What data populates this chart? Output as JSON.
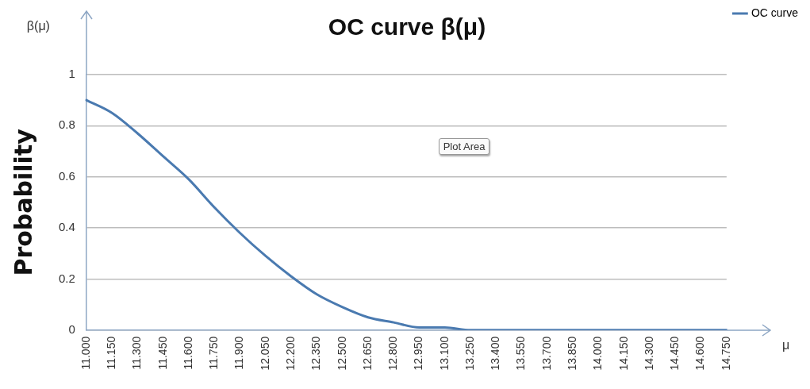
{
  "chart_data": {
    "type": "line",
    "title": "OC curve β(μ)",
    "xlabel": "μ",
    "ylabel": "Probability",
    "annotations": [
      "β(μ)",
      "Plot Area"
    ],
    "categories": [
      "11.000",
      "11.150",
      "11.300",
      "11.450",
      "11.600",
      "11.750",
      "11.900",
      "12.050",
      "12.200",
      "12.350",
      "12.500",
      "12.650",
      "12.800",
      "12.950",
      "13.100",
      "13.250",
      "13.400",
      "13.550",
      "13.700",
      "13.850",
      "14.000",
      "14.150",
      "14.300",
      "14.450",
      "14.600",
      "14.750"
    ],
    "series": [
      {
        "name": "OC curve",
        "color": "#4a7ab0",
        "values": [
          0.9,
          0.85,
          0.77,
          0.68,
          0.59,
          0.48,
          0.38,
          0.29,
          0.21,
          0.14,
          0.09,
          0.05,
          0.03,
          0.01,
          0.01,
          0,
          0,
          0,
          0,
          0,
          0,
          0,
          0,
          0,
          0,
          0
        ]
      }
    ],
    "ylim": [
      0,
      1
    ],
    "yticks": [
      0,
      0.2,
      0.4,
      0.6,
      0.8,
      1
    ],
    "grid": "y",
    "legend": "top right",
    "marker": "none",
    "line_style": "solid"
  }
}
